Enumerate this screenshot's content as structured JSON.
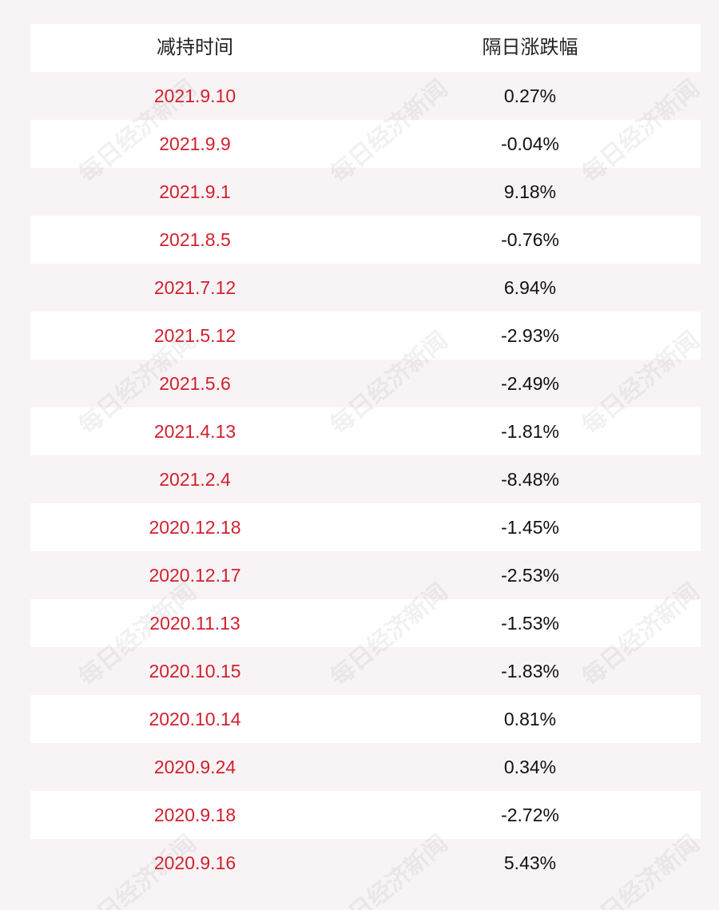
{
  "table": {
    "headers": [
      "减持时间",
      "隔日涨跌幅"
    ],
    "rows": [
      {
        "date": "2021.9.10",
        "change": "0.27%"
      },
      {
        "date": "2021.9.9",
        "change": "-0.04%"
      },
      {
        "date": "2021.9.1",
        "change": "9.18%"
      },
      {
        "date": "2021.8.5",
        "change": "-0.76%"
      },
      {
        "date": "2021.7.12",
        "change": "6.94%"
      },
      {
        "date": "2021.5.12",
        "change": "-2.93%"
      },
      {
        "date": "2021.5.6",
        "change": "-2.49%"
      },
      {
        "date": "2021.4.13",
        "change": "-1.81%"
      },
      {
        "date": "2021.2.4",
        "change": "-8.48%"
      },
      {
        "date": "2020.12.18",
        "change": "-1.45%"
      },
      {
        "date": "2020.12.17",
        "change": "-2.53%"
      },
      {
        "date": "2020.11.13",
        "change": "-1.53%"
      },
      {
        "date": "2020.10.15",
        "change": "-1.83%"
      },
      {
        "date": "2020.10.14",
        "change": "0.81%"
      },
      {
        "date": "2020.9.24",
        "change": "0.34%"
      },
      {
        "date": "2020.9.18",
        "change": "-2.72%"
      },
      {
        "date": "2020.9.16",
        "change": "5.43%"
      }
    ]
  },
  "watermark": "每日经济新闻",
  "colors": {
    "background": "#f8f4f5",
    "row_white": "#ffffff",
    "date_text": "#d2202e",
    "value_text": "#111111"
  }
}
